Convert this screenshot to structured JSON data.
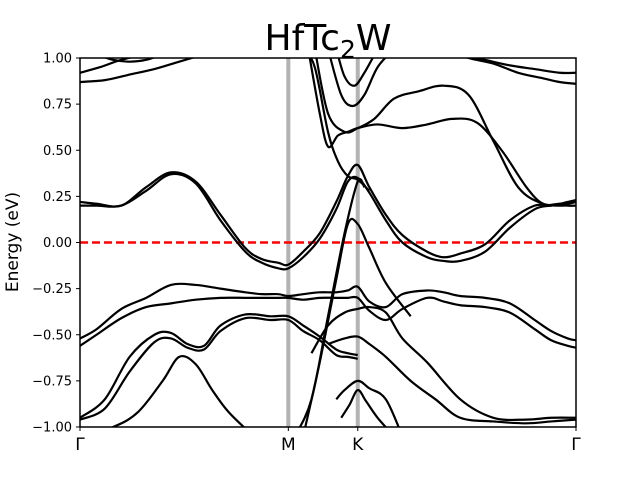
{
  "chart_data": {
    "type": "line",
    "title": {
      "main": "HfTc",
      "subscript": "2",
      "rest": "W"
    },
    "xlabel": "",
    "ylabel": "Energy (eV)",
    "ylim": [
      -1.0,
      1.0
    ],
    "xlim": [
      0.0,
      3.0
    ],
    "yticks": [
      "−1.00",
      "−0.75",
      "−0.50",
      "−0.25",
      "0.00",
      "0.25",
      "0.50",
      "0.75",
      "1.00"
    ],
    "ytick_values": [
      -1.0,
      -0.75,
      -0.5,
      -0.25,
      0.0,
      0.25,
      0.5,
      0.75,
      1.0
    ],
    "high_symmetry_points": [
      {
        "label": "Γ",
        "x": 0.0
      },
      {
        "label": "M",
        "x": 1.26
      },
      {
        "label": "K",
        "x": 1.68
      },
      {
        "label": "Γ",
        "x": 3.0
      }
    ],
    "fermi_level": 0.0,
    "colors": {
      "bands": "#000000",
      "fermi": "#ff0000",
      "vlines": "#b3b3b3"
    },
    "series": [
      {
        "x": [
          0,
          0.1,
          0.2,
          0.3,
          0.4,
          0.5
        ],
        "y": [
          1.05,
          1.02,
          0.99,
          0.98,
          0.99,
          1.02
        ]
      },
      {
        "x": [
          0,
          0.12,
          0.25,
          0.4,
          0.55,
          0.7
        ],
        "y": [
          0.92,
          0.95,
          0.99,
          1.02,
          1.04,
          1.06
        ]
      },
      {
        "x": [
          0,
          0.15,
          0.3,
          0.45,
          0.6,
          0.75
        ],
        "y": [
          0.87,
          0.88,
          0.91,
          0.94,
          0.98,
          1.02
        ]
      },
      {
        "x": [
          0,
          0.1,
          0.25,
          0.4,
          0.55,
          0.7,
          0.85,
          1.0,
          1.1,
          1.2,
          1.26,
          1.35,
          1.45,
          1.55,
          1.62,
          1.68,
          1.75,
          1.85,
          1.95,
          2.1,
          2.2,
          2.3,
          2.45,
          2.6,
          2.75,
          2.85,
          2.95,
          3.0
        ],
        "y": [
          0.22,
          0.21,
          0.2,
          0.3,
          0.38,
          0.33,
          0.15,
          -0.03,
          -0.09,
          -0.11,
          -0.12,
          -0.05,
          0.05,
          0.22,
          0.36,
          0.42,
          0.3,
          0.15,
          0.04,
          -0.05,
          -0.08,
          -0.06,
          -0.01,
          0.12,
          0.2,
          0.2,
          0.22,
          0.23
        ]
      },
      {
        "x": [
          0,
          0.1,
          0.25,
          0.4,
          0.55,
          0.7,
          0.85,
          1.0,
          1.1,
          1.2,
          1.26,
          1.35,
          1.45,
          1.55,
          1.62,
          1.68,
          1.75,
          1.85,
          1.95,
          2.1,
          2.2,
          2.3,
          2.45,
          2.6,
          2.75,
          2.85,
          2.95,
          3.0
        ],
        "y": [
          0.2,
          0.2,
          0.2,
          0.28,
          0.37,
          0.32,
          0.12,
          -0.05,
          -0.11,
          -0.14,
          -0.14,
          -0.08,
          0.02,
          0.18,
          0.33,
          0.35,
          0.27,
          0.12,
          0.0,
          -0.08,
          -0.1,
          -0.1,
          -0.05,
          0.08,
          0.18,
          0.2,
          0.21,
          0.22
        ]
      },
      {
        "x": [
          0,
          0.1,
          0.25,
          0.4,
          0.55,
          0.7,
          0.85,
          1.0,
          1.1,
          1.2,
          1.26,
          1.35,
          1.45,
          1.55,
          1.62,
          1.68,
          1.75,
          1.85,
          1.95,
          2.1,
          2.2,
          2.3,
          2.45,
          2.6,
          2.75,
          2.85,
          2.95,
          3.0
        ],
        "y": [
          -0.52,
          -0.47,
          -0.36,
          -0.3,
          -0.23,
          -0.23,
          -0.25,
          -0.27,
          -0.28,
          -0.28,
          -0.29,
          -0.28,
          -0.27,
          -0.27,
          -0.26,
          -0.24,
          -0.32,
          -0.35,
          -0.28,
          -0.26,
          -0.27,
          -0.29,
          -0.3,
          -0.33,
          -0.42,
          -0.48,
          -0.52,
          -0.53
        ]
      },
      {
        "x": [
          0,
          0.1,
          0.25,
          0.4,
          0.55,
          0.7,
          0.85,
          1.0,
          1.1,
          1.2,
          1.26,
          1.35,
          1.45,
          1.55,
          1.62,
          1.68,
          1.75,
          1.85,
          1.95,
          2.1,
          2.2,
          2.3,
          2.45,
          2.6,
          2.75,
          2.85,
          2.95,
          3.0
        ],
        "y": [
          -0.56,
          -0.5,
          -0.41,
          -0.35,
          -0.33,
          -0.31,
          -0.3,
          -0.3,
          -0.3,
          -0.3,
          -0.3,
          -0.31,
          -0.3,
          -0.3,
          -0.3,
          -0.3,
          -0.37,
          -0.42,
          -0.36,
          -0.3,
          -0.32,
          -0.34,
          -0.35,
          -0.38,
          -0.47,
          -0.53,
          -0.56,
          -0.57
        ]
      },
      {
        "x": [
          0,
          0.15,
          0.3,
          0.45,
          0.55,
          0.65,
          0.75,
          0.85,
          1.0,
          1.15,
          1.26,
          1.35,
          1.45,
          1.55,
          1.62,
          1.68
        ],
        "y": [
          -0.95,
          -0.85,
          -0.62,
          -0.5,
          -0.49,
          -0.55,
          -0.56,
          -0.45,
          -0.39,
          -0.4,
          -0.4,
          -0.45,
          -0.51,
          -0.58,
          -0.6,
          -0.61
        ]
      },
      {
        "x": [
          0,
          0.15,
          0.3,
          0.45,
          0.55,
          0.65,
          0.75,
          0.85,
          1.0,
          1.15,
          1.26,
          1.35,
          1.45,
          1.55,
          1.62,
          1.68
        ],
        "y": [
          -0.96,
          -0.9,
          -0.7,
          -0.54,
          -0.52,
          -0.57,
          -0.58,
          -0.48,
          -0.41,
          -0.42,
          -0.42,
          -0.48,
          -0.53,
          -0.61,
          -0.62,
          -0.63
        ]
      },
      {
        "x": [
          0,
          0.2,
          0.35,
          0.5,
          0.6,
          0.7,
          0.8,
          0.9,
          1.05
        ],
        "y": [
          -1.05,
          -1.0,
          -0.92,
          -0.75,
          -0.62,
          -0.66,
          -0.8,
          -0.92,
          -1.05
        ]
      },
      {
        "x": [
          1.3,
          1.4,
          1.5,
          1.6,
          1.68,
          1.72
        ],
        "y": [
          -1.05,
          -0.85,
          -0.4,
          0.05,
          0.33,
          0.3
        ]
      },
      {
        "x": [
          1.35,
          1.45,
          1.55,
          1.62,
          1.68,
          1.75,
          1.85,
          2.0
        ],
        "y": [
          -1.05,
          -0.65,
          -0.2,
          0.1,
          0.1,
          -0.03,
          -0.22,
          -0.4
        ]
      },
      {
        "x": [
          1.4,
          1.5,
          1.6,
          1.68,
          1.75,
          1.85,
          1.95,
          2.1,
          2.3,
          2.5,
          2.7,
          2.85,
          3.0
        ],
        "y": [
          -0.6,
          -0.45,
          -0.38,
          -0.36,
          -0.35,
          -0.38,
          -0.52,
          -0.65,
          -0.85,
          -0.95,
          -0.96,
          -0.95,
          -0.95
        ]
      },
      {
        "x": [
          1.5,
          1.6,
          1.68,
          1.75,
          1.85,
          2.0,
          2.15,
          2.3,
          2.5,
          2.7,
          2.85,
          3.0
        ],
        "y": [
          -0.55,
          -0.52,
          -0.51,
          -0.55,
          -0.62,
          -0.75,
          -0.85,
          -0.95,
          -0.97,
          -0.98,
          -0.97,
          -0.96
        ]
      },
      {
        "x": [
          1.55,
          1.6,
          1.68,
          1.75,
          1.85,
          1.95
        ],
        "y": [
          -0.85,
          -0.8,
          -0.75,
          -0.79,
          -0.85,
          -1.05
        ]
      },
      {
        "x": [
          1.58,
          1.63,
          1.68,
          1.73,
          1.8,
          1.9
        ],
        "y": [
          -0.95,
          -0.88,
          -0.8,
          -0.86,
          -0.95,
          -1.05
        ]
      },
      {
        "x": [
          1.55,
          1.6,
          1.66,
          1.72,
          1.8
        ],
        "y": [
          1.05,
          0.9,
          0.85,
          0.92,
          1.05
        ]
      },
      {
        "x": [
          1.5,
          1.58,
          1.65,
          1.72,
          1.8,
          1.9
        ],
        "y": [
          1.05,
          0.8,
          0.74,
          0.8,
          0.95,
          1.05
        ]
      },
      {
        "x": [
          1.42,
          1.5,
          1.6,
          1.68,
          1.78,
          1.9,
          2.05,
          2.2,
          2.35,
          2.5,
          2.65,
          2.8,
          2.95,
          3.0
        ],
        "y": [
          1.05,
          0.7,
          0.6,
          0.62,
          0.67,
          0.78,
          0.82,
          0.85,
          0.8,
          0.55,
          0.3,
          0.21,
          0.2,
          0.2
        ]
      },
      {
        "x": [
          1.38,
          1.45,
          1.5,
          1.56,
          1.62,
          1.68,
          1.8,
          1.95,
          2.1,
          2.25,
          2.4,
          2.55,
          2.7,
          2.8,
          2.9,
          3.0
        ],
        "y": [
          1.05,
          0.7,
          0.52,
          0.58,
          0.6,
          0.62,
          0.64,
          0.62,
          0.64,
          0.67,
          0.65,
          0.5,
          0.3,
          0.21,
          0.21,
          0.22
        ]
      },
      {
        "x": [
          1.35,
          1.42,
          1.5,
          1.56,
          1.62,
          1.68,
          1.75
        ],
        "y": [
          1.05,
          0.95,
          0.6,
          0.44,
          0.36,
          0.34,
          0.28
        ]
      },
      {
        "x": [
          2.15,
          2.3,
          2.45,
          2.6,
          2.75,
          2.9,
          3.0
        ],
        "y": [
          1.05,
          1.02,
          0.99,
          0.96,
          0.94,
          0.92,
          0.92
        ]
      },
      {
        "x": [
          2.2,
          2.35,
          2.5,
          2.65,
          2.8,
          2.9,
          3.0
        ],
        "y": [
          1.05,
          1.0,
          0.97,
          0.92,
          0.89,
          0.87,
          0.86
        ]
      }
    ]
  }
}
